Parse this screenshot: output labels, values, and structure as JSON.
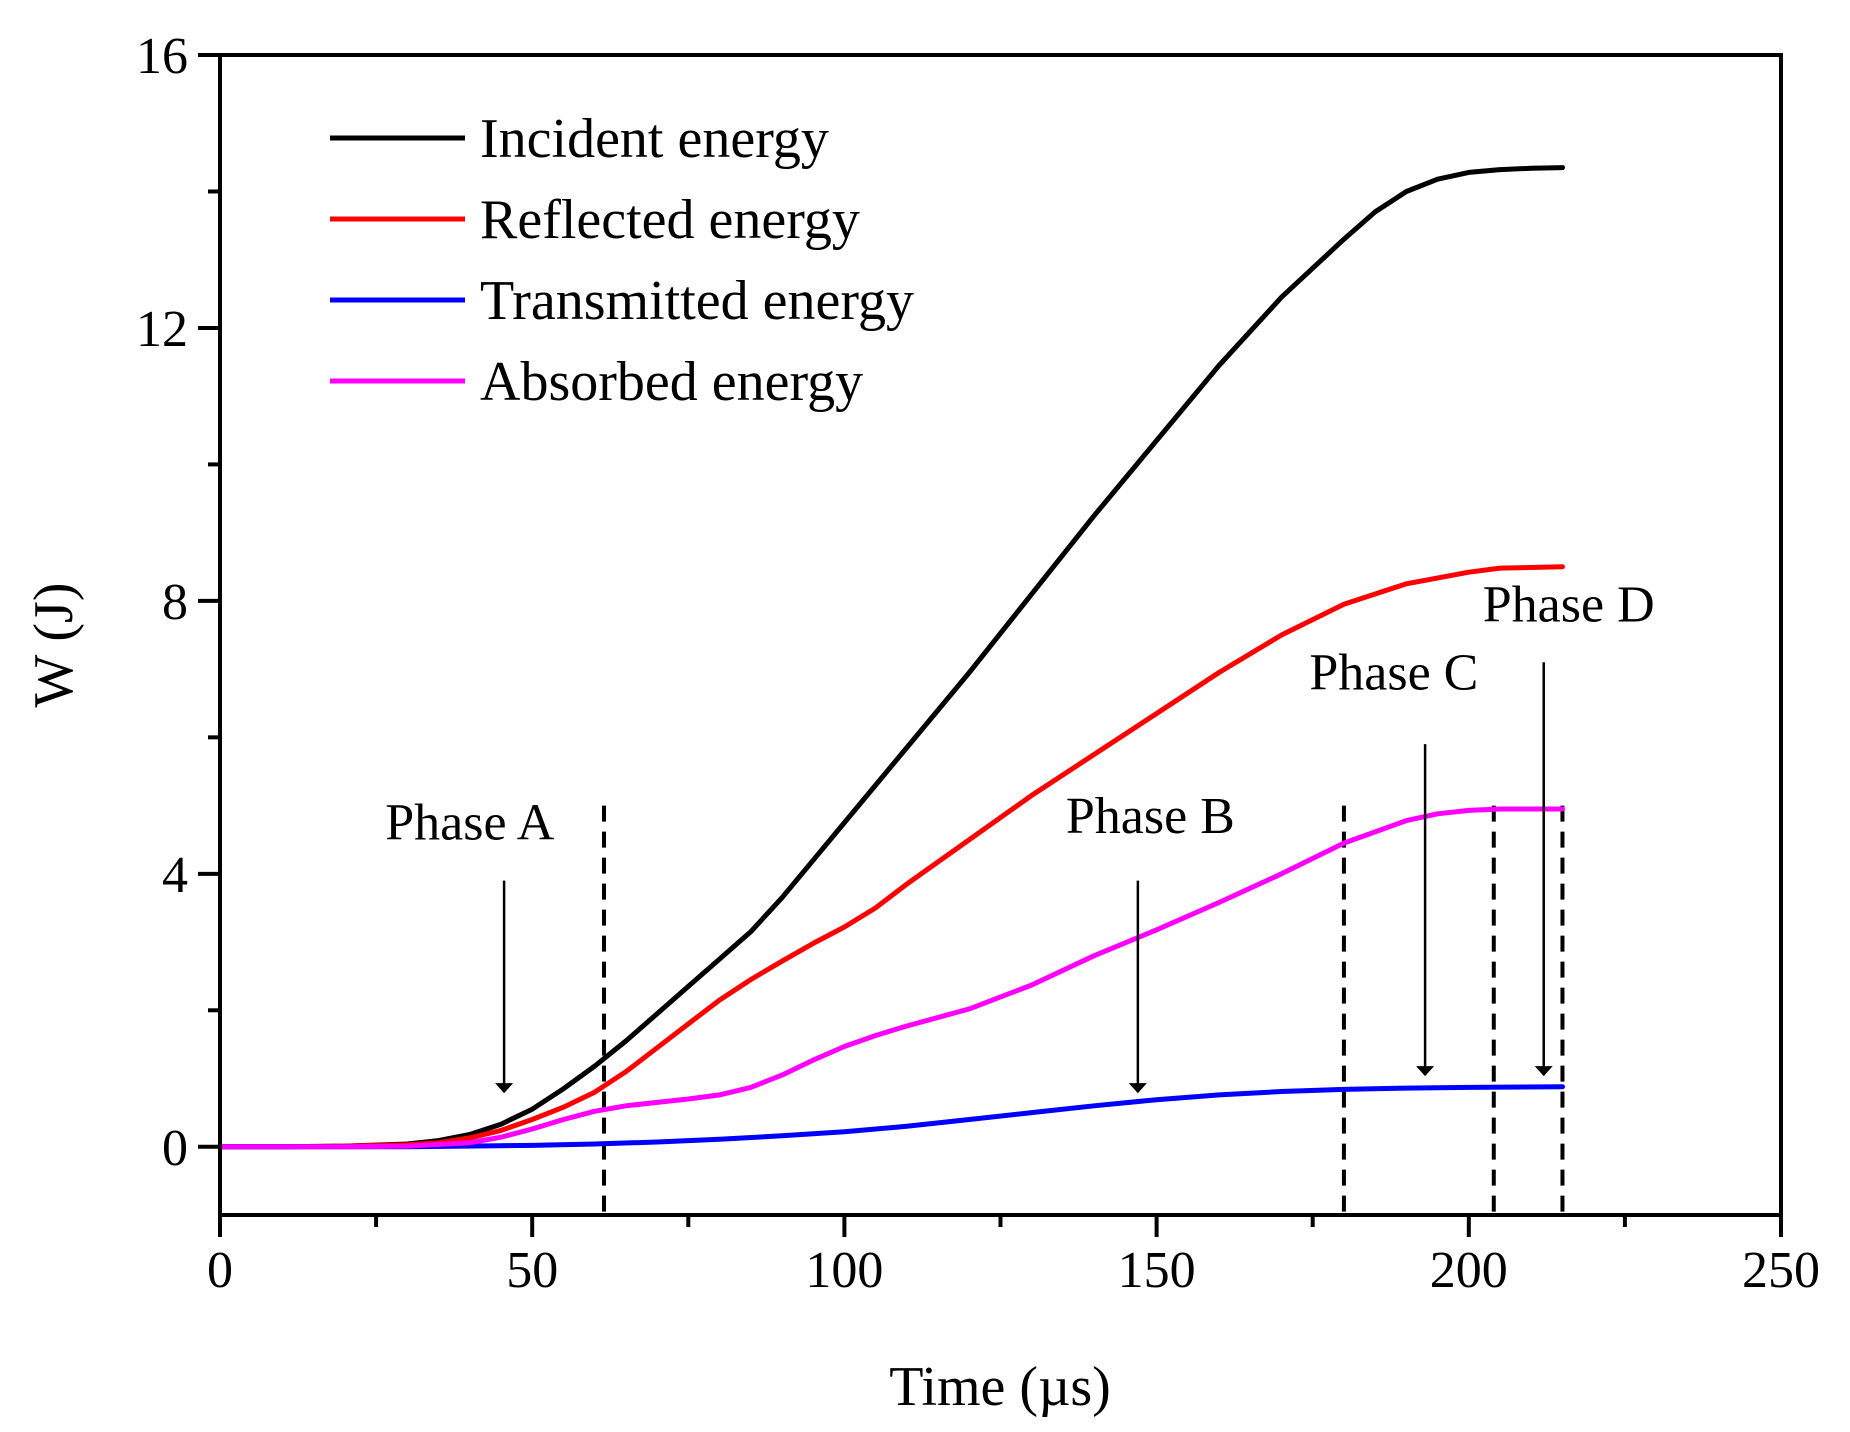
{
  "chart_data": {
    "type": "line",
    "title": "",
    "xlabel": "Time (µs)",
    "ylabel": "W (J)",
    "xlim": [
      0,
      250
    ],
    "ylim": [
      -1,
      16
    ],
    "x_ticks": [
      0,
      50,
      100,
      150,
      200,
      250
    ],
    "y_ticks": [
      0,
      4,
      8,
      12,
      16
    ],
    "x_minor_step": 25,
    "y_minor_step": 2,
    "grid": false,
    "legend_position": "top-left",
    "series": [
      {
        "name": "Incident energy",
        "color": "#000000",
        "points": [
          [
            0,
            0
          ],
          [
            10,
            0
          ],
          [
            20,
            0.01
          ],
          [
            30,
            0.04
          ],
          [
            35,
            0.09
          ],
          [
            40,
            0.18
          ],
          [
            45,
            0.33
          ],
          [
            50,
            0.55
          ],
          [
            55,
            0.85
          ],
          [
            60,
            1.18
          ],
          [
            65,
            1.55
          ],
          [
            70,
            1.95
          ],
          [
            75,
            2.35
          ],
          [
            80,
            2.75
          ],
          [
            85,
            3.15
          ],
          [
            90,
            3.65
          ],
          [
            95,
            4.2
          ],
          [
            100,
            4.75
          ],
          [
            110,
            5.85
          ],
          [
            120,
            6.95
          ],
          [
            130,
            8.1
          ],
          [
            140,
            9.25
          ],
          [
            150,
            10.35
          ],
          [
            160,
            11.45
          ],
          [
            170,
            12.45
          ],
          [
            180,
            13.3
          ],
          [
            185,
            13.7
          ],
          [
            190,
            14.0
          ],
          [
            195,
            14.18
          ],
          [
            200,
            14.28
          ],
          [
            205,
            14.32
          ],
          [
            210,
            14.34
          ],
          [
            215,
            14.35
          ]
        ]
      },
      {
        "name": "Reflected energy",
        "color": "#ff0000",
        "points": [
          [
            0,
            0
          ],
          [
            10,
            0
          ],
          [
            20,
            0.01
          ],
          [
            30,
            0.03
          ],
          [
            35,
            0.06
          ],
          [
            40,
            0.13
          ],
          [
            45,
            0.24
          ],
          [
            50,
            0.4
          ],
          [
            55,
            0.58
          ],
          [
            60,
            0.8
          ],
          [
            65,
            1.1
          ],
          [
            70,
            1.45
          ],
          [
            75,
            1.8
          ],
          [
            80,
            2.15
          ],
          [
            85,
            2.45
          ],
          [
            90,
            2.72
          ],
          [
            95,
            2.98
          ],
          [
            100,
            3.22
          ],
          [
            105,
            3.5
          ],
          [
            110,
            3.85
          ],
          [
            120,
            4.5
          ],
          [
            130,
            5.15
          ],
          [
            140,
            5.75
          ],
          [
            150,
            6.35
          ],
          [
            160,
            6.95
          ],
          [
            170,
            7.5
          ],
          [
            180,
            7.95
          ],
          [
            190,
            8.25
          ],
          [
            200,
            8.42
          ],
          [
            205,
            8.48
          ],
          [
            215,
            8.5
          ]
        ]
      },
      {
        "name": "Transmitted energy",
        "color": "#0000ff",
        "points": [
          [
            0,
            0
          ],
          [
            30,
            0
          ],
          [
            50,
            0.02
          ],
          [
            60,
            0.04
          ],
          [
            70,
            0.07
          ],
          [
            80,
            0.11
          ],
          [
            90,
            0.16
          ],
          [
            100,
            0.22
          ],
          [
            110,
            0.3
          ],
          [
            120,
            0.4
          ],
          [
            130,
            0.5
          ],
          [
            140,
            0.6
          ],
          [
            150,
            0.69
          ],
          [
            160,
            0.76
          ],
          [
            170,
            0.81
          ],
          [
            180,
            0.84
          ],
          [
            190,
            0.86
          ],
          [
            200,
            0.87
          ],
          [
            215,
            0.88
          ]
        ]
      },
      {
        "name": "Absorbed energy",
        "color": "#ff00ff",
        "points": [
          [
            0,
            0
          ],
          [
            20,
            0
          ],
          [
            30,
            0.01
          ],
          [
            40,
            0.06
          ],
          [
            45,
            0.14
          ],
          [
            50,
            0.26
          ],
          [
            55,
            0.4
          ],
          [
            60,
            0.52
          ],
          [
            65,
            0.6
          ],
          [
            70,
            0.65
          ],
          [
            75,
            0.7
          ],
          [
            80,
            0.76
          ],
          [
            85,
            0.87
          ],
          [
            90,
            1.05
          ],
          [
            95,
            1.27
          ],
          [
            100,
            1.47
          ],
          [
            105,
            1.63
          ],
          [
            110,
            1.77
          ],
          [
            120,
            2.02
          ],
          [
            130,
            2.37
          ],
          [
            140,
            2.8
          ],
          [
            150,
            3.18
          ],
          [
            160,
            3.58
          ],
          [
            170,
            4.0
          ],
          [
            180,
            4.45
          ],
          [
            190,
            4.78
          ],
          [
            195,
            4.88
          ],
          [
            200,
            4.93
          ],
          [
            205,
            4.95
          ],
          [
            215,
            4.95
          ]
        ]
      }
    ],
    "phase_lines": [
      61.5,
      180,
      204,
      215
    ],
    "annotations": [
      {
        "text": "Phase A",
        "label_at": [
          40,
          4.5
        ],
        "arrow_from": [
          45.5,
          3.9
        ],
        "arrow_to": [
          45.5,
          0.8
        ]
      },
      {
        "text": "Phase B",
        "label_at": [
          149,
          4.6
        ],
        "arrow_from": [
          147,
          3.9
        ],
        "arrow_to": [
          147,
          0.8
        ]
      },
      {
        "text": "Phase C",
        "label_at": [
          188,
          6.7
        ],
        "arrow_from": [
          193,
          5.9
        ],
        "arrow_to": [
          193,
          1.05
        ]
      },
      {
        "text": "Phase D",
        "label_at": [
          216,
          7.7
        ],
        "arrow_from": [
          212,
          7.1
        ],
        "arrow_to": [
          212,
          1.05
        ]
      }
    ]
  }
}
